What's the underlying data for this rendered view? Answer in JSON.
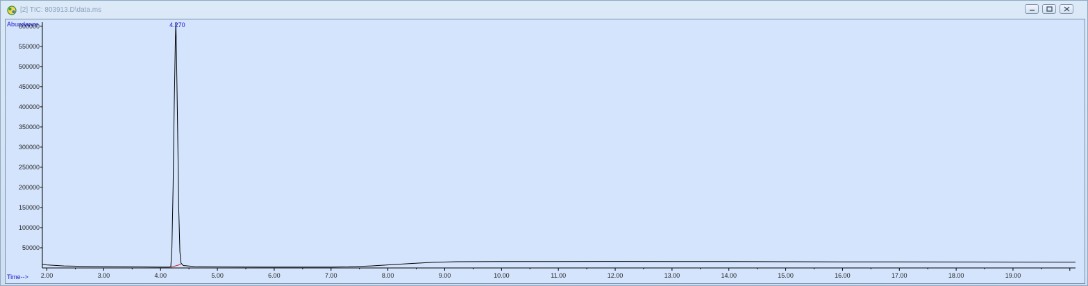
{
  "window": {
    "title": "[2] TIC: 803913.D\\data.ms",
    "icons": [
      "app-icon",
      "minimize-icon",
      "restore-icon",
      "close-icon"
    ]
  },
  "chart_data": {
    "type": "line",
    "title": "",
    "xlabel": "Time-->",
    "ylabel": "Abundance",
    "xlim": [
      1.92,
      20.1
    ],
    "ylim": [
      0,
      610000
    ],
    "x_ticks": [
      "2.00",
      "3.00",
      "4.00",
      "5.00",
      "6.00",
      "7.00",
      "8.00",
      "9.00",
      "10.00",
      "11.00",
      "12.00",
      "13.00",
      "14.00",
      "15.00",
      "16.00",
      "17.00",
      "18.00",
      "19.00"
    ],
    "y_ticks": [
      "50000",
      "100000",
      "150000",
      "200000",
      "250000",
      "300000",
      "350000",
      "400000",
      "450000",
      "500000",
      "550000",
      "600000"
    ],
    "grid": false,
    "line_color": "#000000",
    "baseline_marker_color": "#d02020",
    "peaks": [
      {
        "label": "4.270",
        "x": 4.27,
        "y": 610000
      }
    ],
    "series": [
      {
        "points": [
          [
            1.92,
            9000
          ],
          [
            2.0,
            7500
          ],
          [
            2.3,
            5000
          ],
          [
            2.6,
            4200
          ],
          [
            3.0,
            3500
          ],
          [
            3.5,
            2800
          ],
          [
            4.0,
            2200
          ],
          [
            4.15,
            2000
          ],
          [
            4.18,
            2500
          ],
          [
            4.2,
            50000
          ],
          [
            4.22,
            200000
          ],
          [
            4.24,
            400000
          ],
          [
            4.26,
            560000
          ],
          [
            4.27,
            610000
          ],
          [
            4.28,
            530000
          ],
          [
            4.3,
            350000
          ],
          [
            4.32,
            150000
          ],
          [
            4.34,
            40000
          ],
          [
            4.36,
            12000
          ],
          [
            4.4,
            6000
          ],
          [
            4.6,
            3500
          ],
          [
            5.0,
            2500
          ],
          [
            6.0,
            2000
          ],
          [
            7.0,
            2200
          ],
          [
            7.3,
            2800
          ],
          [
            7.7,
            5000
          ],
          [
            8.0,
            7500
          ],
          [
            8.4,
            11000
          ],
          [
            8.8,
            14000
          ],
          [
            9.2,
            15500
          ],
          [
            10.0,
            16000
          ],
          [
            11.0,
            16000
          ],
          [
            12.0,
            16200
          ],
          [
            13.0,
            16000
          ],
          [
            14.0,
            16000
          ],
          [
            15.0,
            15500
          ],
          [
            16.0,
            15200
          ],
          [
            17.0,
            15000
          ],
          [
            18.0,
            14800
          ],
          [
            19.0,
            14600
          ],
          [
            20.1,
            14500
          ]
        ]
      }
    ]
  }
}
